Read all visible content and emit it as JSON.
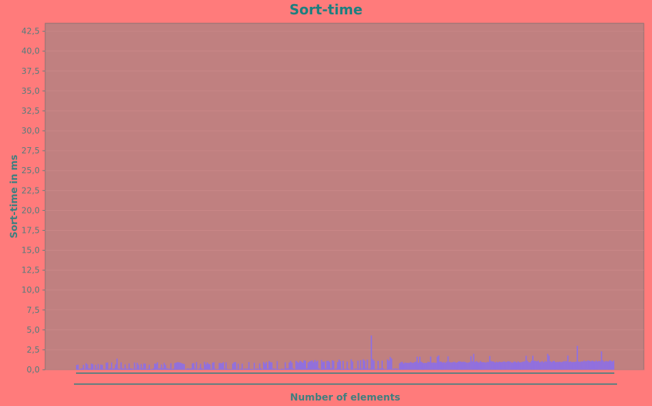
{
  "chart_data": {
    "type": "bar",
    "title": "Sort-time",
    "xlabel": "Number of elements",
    "ylabel": "Sort-time in ms",
    "ylim": [
      0,
      43.5
    ],
    "yticks": [
      "0,0",
      "2,5",
      "5,0",
      "7,5",
      "10,0",
      "12,5",
      "15,0",
      "17,5",
      "20,0",
      "22,5",
      "25,0",
      "27,5",
      "30,0",
      "32,5",
      "35,0",
      "37,5",
      "40,0",
      "42,5"
    ],
    "ytick_values": [
      0,
      2.5,
      5,
      7.5,
      10,
      12.5,
      15,
      17.5,
      20,
      22.5,
      25,
      27.5,
      30,
      32.5,
      35,
      37.5,
      40,
      42.5
    ],
    "grid": true,
    "legend": "none",
    "series_color": "#8e6fe3",
    "bar_count": 400,
    "baseline": [
      {
        "index": 0,
        "value": 0.3
      },
      {
        "index": 100,
        "value": 0.4
      },
      {
        "index": 200,
        "value": 0.7
      },
      {
        "index": 240,
        "value": 0.9
      },
      {
        "index": 300,
        "value": 1.0
      },
      {
        "index": 400,
        "value": 1.1
      }
    ],
    "spikes": [
      {
        "index": 30,
        "value": 1.4
      },
      {
        "index": 219,
        "value": 4.3
      },
      {
        "index": 233,
        "value": 1.6
      },
      {
        "index": 269,
        "value": 1.8
      },
      {
        "index": 295,
        "value": 2.0
      },
      {
        "index": 350,
        "value": 2.0
      },
      {
        "index": 372,
        "value": 3.0
      },
      {
        "index": 390,
        "value": 2.3
      }
    ]
  },
  "colors": {
    "background": "#ff7b7b",
    "plot_background": "#c08080",
    "title": "#1e7f7f",
    "axis": "#5a7f7f",
    "gridline": "#d08c8c"
  }
}
